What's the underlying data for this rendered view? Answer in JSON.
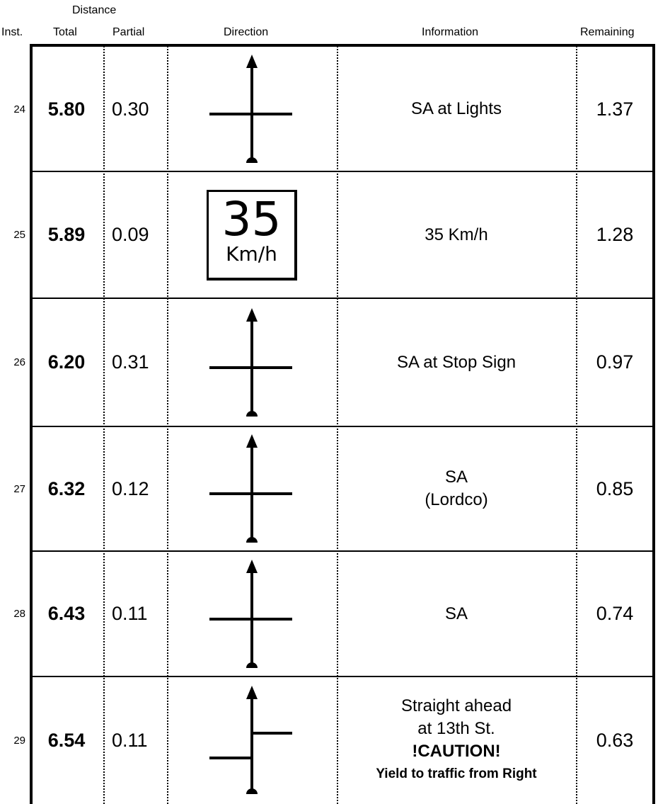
{
  "header": {
    "distance": "Distance",
    "inst": "Inst.",
    "total": "Total",
    "partial": "Partial",
    "direction": "Direction",
    "information": "Information",
    "remaining": "Remaining"
  },
  "rows": [
    {
      "inst": "24",
      "total": "5.80",
      "partial": "0.30",
      "direction_icon": "straight-ahead-crossroads-icon",
      "info": [
        "SA at Lights"
      ],
      "remaining": "1.37"
    },
    {
      "inst": "25",
      "total": "5.89",
      "partial": "0.09",
      "direction_icon": "speed-limit-sign-icon",
      "sign_value": "35",
      "sign_unit": "Km/h",
      "info": [
        "35 Km/h"
      ],
      "remaining": "1.28"
    },
    {
      "inst": "26",
      "total": "6.20",
      "partial": "0.31",
      "direction_icon": "straight-ahead-crossroads-icon",
      "info": [
        "SA at Stop Sign"
      ],
      "remaining": "0.97"
    },
    {
      "inst": "27",
      "total": "6.32",
      "partial": "0.12",
      "direction_icon": "straight-ahead-crossroads-icon",
      "info": [
        "SA",
        "(Lordco)"
      ],
      "remaining": "0.85"
    },
    {
      "inst": "28",
      "total": "6.43",
      "partial": "0.11",
      "direction_icon": "straight-ahead-crossroads-icon",
      "info": [
        "SA"
      ],
      "remaining": "0.74"
    },
    {
      "inst": "29",
      "total": "6.54",
      "partial": "0.11",
      "direction_icon": "straight-ahead-offset-junction-icon",
      "info": [
        "Straight ahead",
        "at 13th St."
      ],
      "info_caution": "!CAUTION!",
      "info_yield": "Yield to traffic from Right",
      "remaining": "0.63"
    }
  ]
}
